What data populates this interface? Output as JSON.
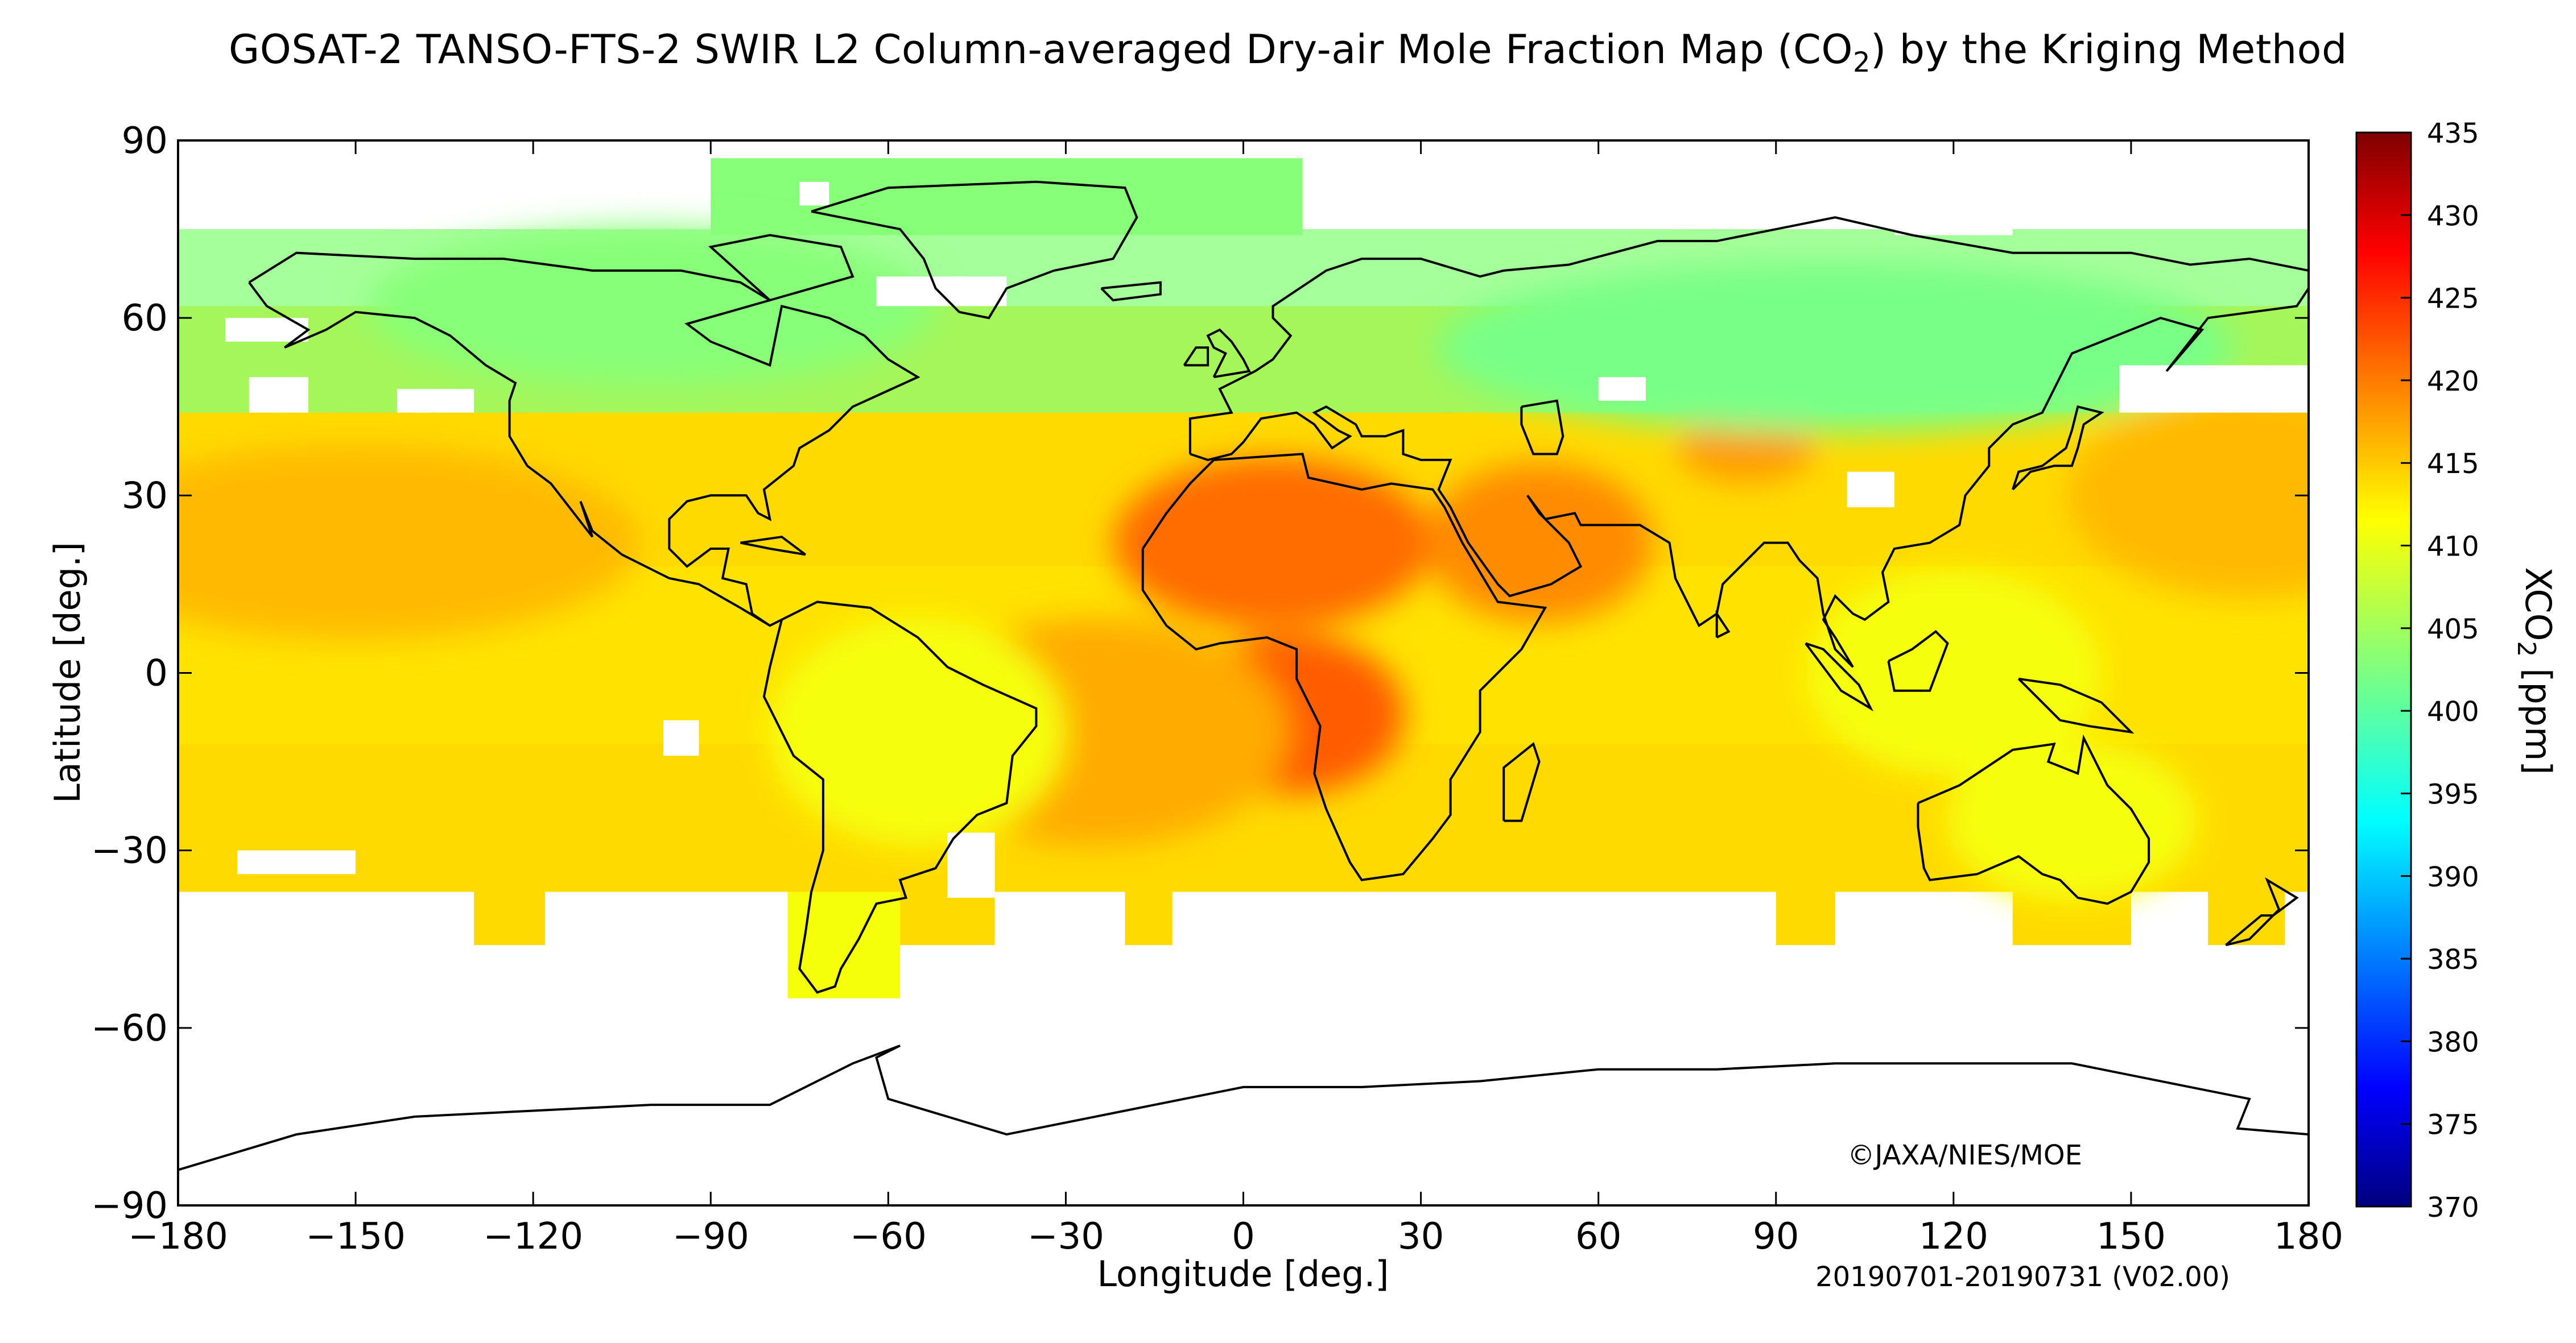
{
  "title_parts": {
    "before": "GOSAT-2 TANSO-FTS-2 SWIR L2 Column-averaged Dry-air Mole Fraction Map (CO",
    "sub": "2",
    "after": ") by the Kriging Method"
  },
  "copyright": "©JAXA/NIES/MOE",
  "period": "20190701-20190731 (V02.00)",
  "chart_data": {
    "type": "heatmap",
    "xlabel": "Longitude [deg.]",
    "ylabel": "Latitude [deg.]",
    "xlim": [
      -180,
      180
    ],
    "ylim": [
      -90,
      90
    ],
    "xticks": [
      -180,
      -150,
      -120,
      -90,
      -60,
      -30,
      0,
      30,
      60,
      90,
      120,
      150,
      180
    ],
    "xtick_labels": [
      "−180",
      "−150",
      "−120",
      "−90",
      "−60",
      "−30",
      "0",
      "30",
      "60",
      "90",
      "120",
      "150",
      "180"
    ],
    "yticks": [
      90,
      60,
      30,
      0,
      -30,
      -60,
      -90
    ],
    "ytick_labels": [
      "90",
      "60",
      "30",
      "0",
      "−30",
      "−60",
      "−90"
    ],
    "colorbar": {
      "label_main": "XCO",
      "label_sub": "2",
      "label_unit": " [ppm]",
      "min": 370,
      "max": 435,
      "ticks": [
        435,
        430,
        425,
        420,
        415,
        410,
        405,
        400,
        395,
        390,
        385,
        380,
        375,
        370
      ],
      "colormap": "jet"
    },
    "field_summary": {
      "high_latitudes_north_ppm": 403,
      "tropics_ppm": 412,
      "southern_midlatitudes_ppm": 413,
      "sahara_maximum_ppm": 420,
      "central_africa_maximum_ppm": 421,
      "arabia_maximum_ppm": 418,
      "no_data": "south of about -55 and north of about 75"
    }
  }
}
